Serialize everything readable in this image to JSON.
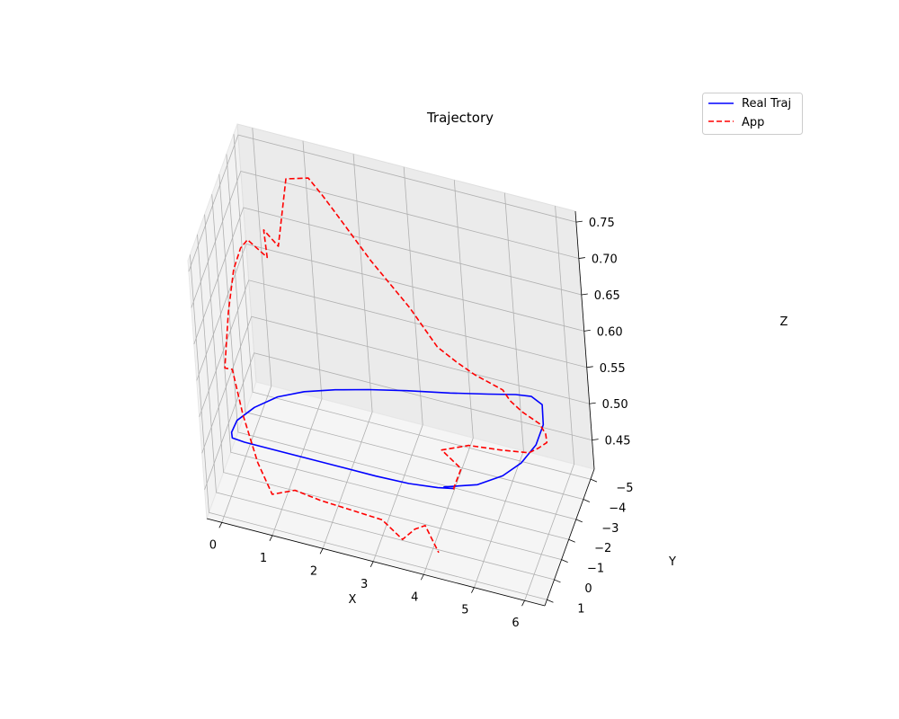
{
  "chart_data": {
    "type": "line",
    "projection": "3d",
    "title": "Trajectory",
    "xlabel": "X",
    "ylabel": "Y",
    "zlabel": "Z",
    "xlim": [
      -0.3,
      6.4
    ],
    "ylim": [
      -5.5,
      1.3
    ],
    "zlim": [
      0.41,
      0.765
    ],
    "xticks": [
      0,
      1,
      2,
      3,
      4,
      5,
      6
    ],
    "yticks": [
      -5,
      -4,
      -3,
      -2,
      -1,
      0,
      1
    ],
    "zticks": [
      0.45,
      0.5,
      0.55,
      0.6,
      0.65,
      0.7,
      0.75
    ],
    "xtick_labels": [
      "0",
      "1",
      "2",
      "3",
      "4",
      "5",
      "6"
    ],
    "ytick_labels": [
      "−5",
      "−4",
      "−3",
      "−2",
      "−1",
      "0",
      "1"
    ],
    "ztick_labels": [
      "0.45",
      "0.50",
      "0.55",
      "0.60",
      "0.65",
      "0.70",
      "0.75"
    ],
    "grid": true,
    "legend_position": "upper-right",
    "legend": [
      {
        "label": "Real Traj",
        "color": "#0000ff",
        "linestyle": "solid"
      },
      {
        "label": "App",
        "color": "#ff0000",
        "linestyle": "dashed"
      }
    ],
    "series": [
      {
        "name": "Real Traj",
        "color": "#0000ff",
        "linestyle": "solid",
        "points": [
          [
            4.3,
            0.0,
            0.5
          ],
          [
            4.9,
            -0.5,
            0.5
          ],
          [
            5.3,
            -1.2,
            0.5
          ],
          [
            5.55,
            -2.0,
            0.5
          ],
          [
            5.7,
            -3.0,
            0.5
          ],
          [
            5.7,
            -4.0,
            0.5
          ],
          [
            5.55,
            -4.9,
            0.5
          ],
          [
            5.3,
            -5.15,
            0.5
          ],
          [
            5.0,
            -5.05,
            0.5
          ],
          [
            4.5,
            -4.75,
            0.5
          ],
          [
            3.8,
            -4.35,
            0.5
          ],
          [
            3.0,
            -3.95,
            0.5
          ],
          [
            2.3,
            -3.55,
            0.5
          ],
          [
            1.7,
            -3.15,
            0.5
          ],
          [
            1.15,
            -2.7,
            0.5
          ],
          [
            0.7,
            -2.15,
            0.5
          ],
          [
            0.35,
            -1.4,
            0.5
          ],
          [
            0.12,
            -0.6,
            0.5
          ],
          [
            0.1,
            0.0,
            0.5
          ],
          [
            0.15,
            0.25,
            0.5
          ],
          [
            0.4,
            0.3,
            0.5
          ],
          [
            0.95,
            0.3,
            0.5
          ],
          [
            1.6,
            0.3,
            0.5
          ],
          [
            2.3,
            0.3,
            0.5
          ],
          [
            3.0,
            0.3,
            0.5
          ],
          [
            3.65,
            0.25,
            0.5
          ],
          [
            4.2,
            0.1,
            0.5
          ],
          [
            4.5,
            -0.05,
            0.5
          ]
        ]
      },
      {
        "name": "App",
        "color": "#ff0000",
        "linestyle": "dashed",
        "points": [
          [
            4.5,
            0.0,
            0.5
          ],
          [
            4.55,
            0.2,
            0.51
          ],
          [
            4.7,
            0.1,
            0.535
          ],
          [
            4.3,
            -0.1,
            0.548
          ],
          [
            4.8,
            -0.4,
            0.555
          ],
          [
            5.4,
            -0.7,
            0.551
          ],
          [
            5.9,
            -1.0,
            0.548
          ],
          [
            6.0,
            -1.5,
            0.542
          ],
          [
            6.1,
            -2.0,
            0.538
          ],
          [
            6.0,
            -2.5,
            0.534
          ],
          [
            5.8,
            -3.0,
            0.531
          ],
          [
            5.4,
            -3.4,
            0.529
          ],
          [
            5.1,
            -3.8,
            0.528
          ],
          [
            4.9,
            -4.2,
            0.528
          ],
          [
            4.3,
            -4.5,
            0.53
          ],
          [
            3.9,
            -4.8,
            0.532
          ],
          [
            3.5,
            -5.0,
            0.54
          ],
          [
            3.0,
            -5.0,
            0.585
          ],
          [
            2.3,
            -4.9,
            0.64
          ],
          [
            1.7,
            -4.7,
            0.7
          ],
          [
            1.5,
            -4.4,
            0.73
          ],
          [
            1.3,
            -4.1,
            0.758
          ],
          [
            0.9,
            -3.8,
            0.758
          ],
          [
            0.7,
            -3.5,
            0.67
          ],
          [
            0.5,
            -3.1,
            0.7
          ],
          [
            0.6,
            -2.7,
            0.675
          ],
          [
            0.3,
            -2.3,
            0.705
          ],
          [
            0.2,
            -2.0,
            0.7
          ],
          [
            0.1,
            -1.6,
            0.68
          ],
          [
            0.0,
            -1.2,
            0.63
          ],
          [
            -0.1,
            -0.9,
            0.56
          ],
          [
            0.1,
            -0.6,
            0.57
          ],
          [
            0.3,
            -0.3,
            0.52
          ],
          [
            0.6,
            0.1,
            0.47
          ],
          [
            0.9,
            0.4,
            0.44
          ],
          [
            1.4,
            0.6,
            0.46
          ],
          [
            1.9,
            0.6,
            0.455
          ],
          [
            2.4,
            0.5,
            0.45
          ],
          [
            3.1,
            0.5,
            0.447
          ],
          [
            3.5,
            0.6,
            0.43
          ],
          [
            3.8,
            0.8,
            0.455
          ],
          [
            4.05,
            1.0,
            0.47
          ],
          [
            4.3,
            1.1,
            0.44
          ]
        ]
      }
    ]
  }
}
